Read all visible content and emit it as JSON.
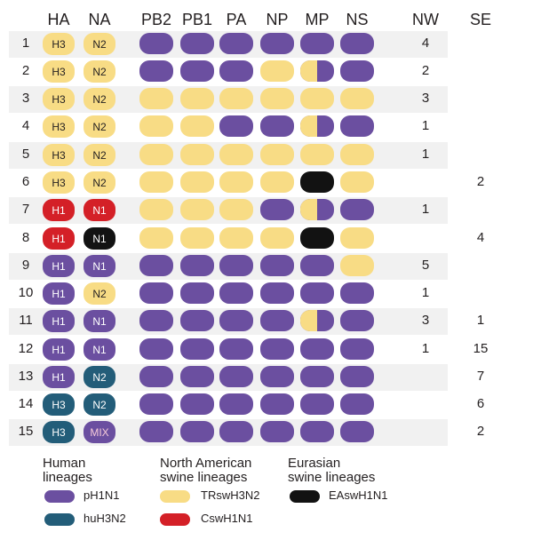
{
  "colors": {
    "pH1N1": "#6b4fa0",
    "huH3N2": "#235d79",
    "TRswH3N2": "#f8dc85",
    "CswH1N1": "#d42027",
    "EAswH1N1": "#121212",
    "band": "#f1f1f1"
  },
  "headers": {
    "ha": "HA",
    "na": "NA",
    "pb2": "PB2",
    "pb1": "PB1",
    "pa": "PA",
    "np": "NP",
    "mp": "MP",
    "ns": "NS",
    "nw": "NW",
    "se": "SE"
  },
  "rows": [
    {
      "num": "1",
      "ha": {
        "label": "H3",
        "c": "TRswH3N2"
      },
      "na": {
        "label": "N2",
        "c": "TRswH3N2"
      },
      "pb2": "pH1N1",
      "pb1": "pH1N1",
      "pa": "pH1N1",
      "np": "pH1N1",
      "mp": "pH1N1",
      "ns": "pH1N1",
      "nw": "4",
      "se": ""
    },
    {
      "num": "2",
      "ha": {
        "label": "H3",
        "c": "TRswH3N2"
      },
      "na": {
        "label": "N2",
        "c": "TRswH3N2"
      },
      "pb2": "pH1N1",
      "pb1": "pH1N1",
      "pa": "pH1N1",
      "np": "TRswH3N2",
      "mp": "split",
      "ns": "pH1N1",
      "nw": "2",
      "se": ""
    },
    {
      "num": "3",
      "ha": {
        "label": "H3",
        "c": "TRswH3N2"
      },
      "na": {
        "label": "N2",
        "c": "TRswH3N2"
      },
      "pb2": "TRswH3N2",
      "pb1": "TRswH3N2",
      "pa": "TRswH3N2",
      "np": "TRswH3N2",
      "mp": "TRswH3N2",
      "ns": "TRswH3N2",
      "nw": "3",
      "se": ""
    },
    {
      "num": "4",
      "ha": {
        "label": "H3",
        "c": "TRswH3N2"
      },
      "na": {
        "label": "N2",
        "c": "TRswH3N2"
      },
      "pb2": "TRswH3N2",
      "pb1": "TRswH3N2",
      "pa": "pH1N1",
      "np": "pH1N1",
      "mp": "split",
      "ns": "pH1N1",
      "nw": "1",
      "se": ""
    },
    {
      "num": "5",
      "ha": {
        "label": "H3",
        "c": "TRswH3N2"
      },
      "na": {
        "label": "N2",
        "c": "TRswH3N2"
      },
      "pb2": "TRswH3N2",
      "pb1": "TRswH3N2",
      "pa": "TRswH3N2",
      "np": "TRswH3N2",
      "mp": "TRswH3N2",
      "ns": "TRswH3N2",
      "nw": "1",
      "se": ""
    },
    {
      "num": "6",
      "ha": {
        "label": "H3",
        "c": "TRswH3N2"
      },
      "na": {
        "label": "N2",
        "c": "TRswH3N2"
      },
      "pb2": "TRswH3N2",
      "pb1": "TRswH3N2",
      "pa": "TRswH3N2",
      "np": "TRswH3N2",
      "mp": "EAswH1N1",
      "ns": "TRswH3N2",
      "nw": "",
      "se": "2"
    },
    {
      "num": "7",
      "ha": {
        "label": "H1",
        "c": "CswH1N1"
      },
      "na": {
        "label": "N1",
        "c": "CswH1N1"
      },
      "pb2": "TRswH3N2",
      "pb1": "TRswH3N2",
      "pa": "TRswH3N2",
      "np": "pH1N1",
      "mp": "split",
      "ns": "pH1N1",
      "nw": "1",
      "se": ""
    },
    {
      "num": "8",
      "ha": {
        "label": "H1",
        "c": "CswH1N1"
      },
      "na": {
        "label": "N1",
        "c": "EAswH1N1"
      },
      "pb2": "TRswH3N2",
      "pb1": "TRswH3N2",
      "pa": "TRswH3N2",
      "np": "TRswH3N2",
      "mp": "EAswH1N1",
      "ns": "TRswH3N2",
      "nw": "",
      "se": "4"
    },
    {
      "num": "9",
      "ha": {
        "label": "H1",
        "c": "pH1N1"
      },
      "na": {
        "label": "N1",
        "c": "pH1N1"
      },
      "pb2": "pH1N1",
      "pb1": "pH1N1",
      "pa": "pH1N1",
      "np": "pH1N1",
      "mp": "pH1N1",
      "ns": "TRswH3N2",
      "nw": "5",
      "se": ""
    },
    {
      "num": "10",
      "ha": {
        "label": "H1",
        "c": "pH1N1"
      },
      "na": {
        "label": "N2",
        "c": "TRswH3N2"
      },
      "pb2": "pH1N1",
      "pb1": "pH1N1",
      "pa": "pH1N1",
      "np": "pH1N1",
      "mp": "pH1N1",
      "ns": "pH1N1",
      "nw": "1",
      "se": ""
    },
    {
      "num": "11",
      "ha": {
        "label": "H1",
        "c": "pH1N1"
      },
      "na": {
        "label": "N1",
        "c": "pH1N1"
      },
      "pb2": "pH1N1",
      "pb1": "pH1N1",
      "pa": "pH1N1",
      "np": "pH1N1",
      "mp": "split",
      "ns": "pH1N1",
      "nw": "3",
      "se": "1"
    },
    {
      "num": "12",
      "ha": {
        "label": "H1",
        "c": "pH1N1"
      },
      "na": {
        "label": "N1",
        "c": "pH1N1"
      },
      "pb2": "pH1N1",
      "pb1": "pH1N1",
      "pa": "pH1N1",
      "np": "pH1N1",
      "mp": "pH1N1",
      "ns": "pH1N1",
      "nw": "1",
      "se": "15"
    },
    {
      "num": "13",
      "ha": {
        "label": "H1",
        "c": "pH1N1"
      },
      "na": {
        "label": "N2",
        "c": "huH3N2"
      },
      "pb2": "pH1N1",
      "pb1": "pH1N1",
      "pa": "pH1N1",
      "np": "pH1N1",
      "mp": "pH1N1",
      "ns": "pH1N1",
      "nw": "",
      "se": "7"
    },
    {
      "num": "14",
      "ha": {
        "label": "H3",
        "c": "huH3N2"
      },
      "na": {
        "label": "N2",
        "c": "huH3N2"
      },
      "pb2": "pH1N1",
      "pb1": "pH1N1",
      "pa": "pH1N1",
      "np": "pH1N1",
      "mp": "pH1N1",
      "ns": "pH1N1",
      "nw": "",
      "se": "6"
    },
    {
      "num": "15",
      "ha": {
        "label": "H3",
        "c": "huH3N2"
      },
      "na": {
        "label": "MIX",
        "c": "MIX"
      },
      "pb2": "pH1N1",
      "pb1": "pH1N1",
      "pa": "pH1N1",
      "np": "pH1N1",
      "mp": "pH1N1",
      "ns": "pH1N1",
      "nw": "",
      "se": "2"
    }
  ],
  "legend": {
    "human_title_1": "Human",
    "human_title_2": "lineages",
    "na_title_1": "North American",
    "na_title_2": "swine lineages",
    "ea_title_1": "Eurasian",
    "ea_title_2": "swine lineages",
    "items": {
      "pH1N1": "pH1N1",
      "huH3N2": "huH3N2",
      "TRswH3N2": "TRswH3N2",
      "CswH1N1": "CswH1N1",
      "EAswH1N1": "EAswH1N1"
    }
  }
}
